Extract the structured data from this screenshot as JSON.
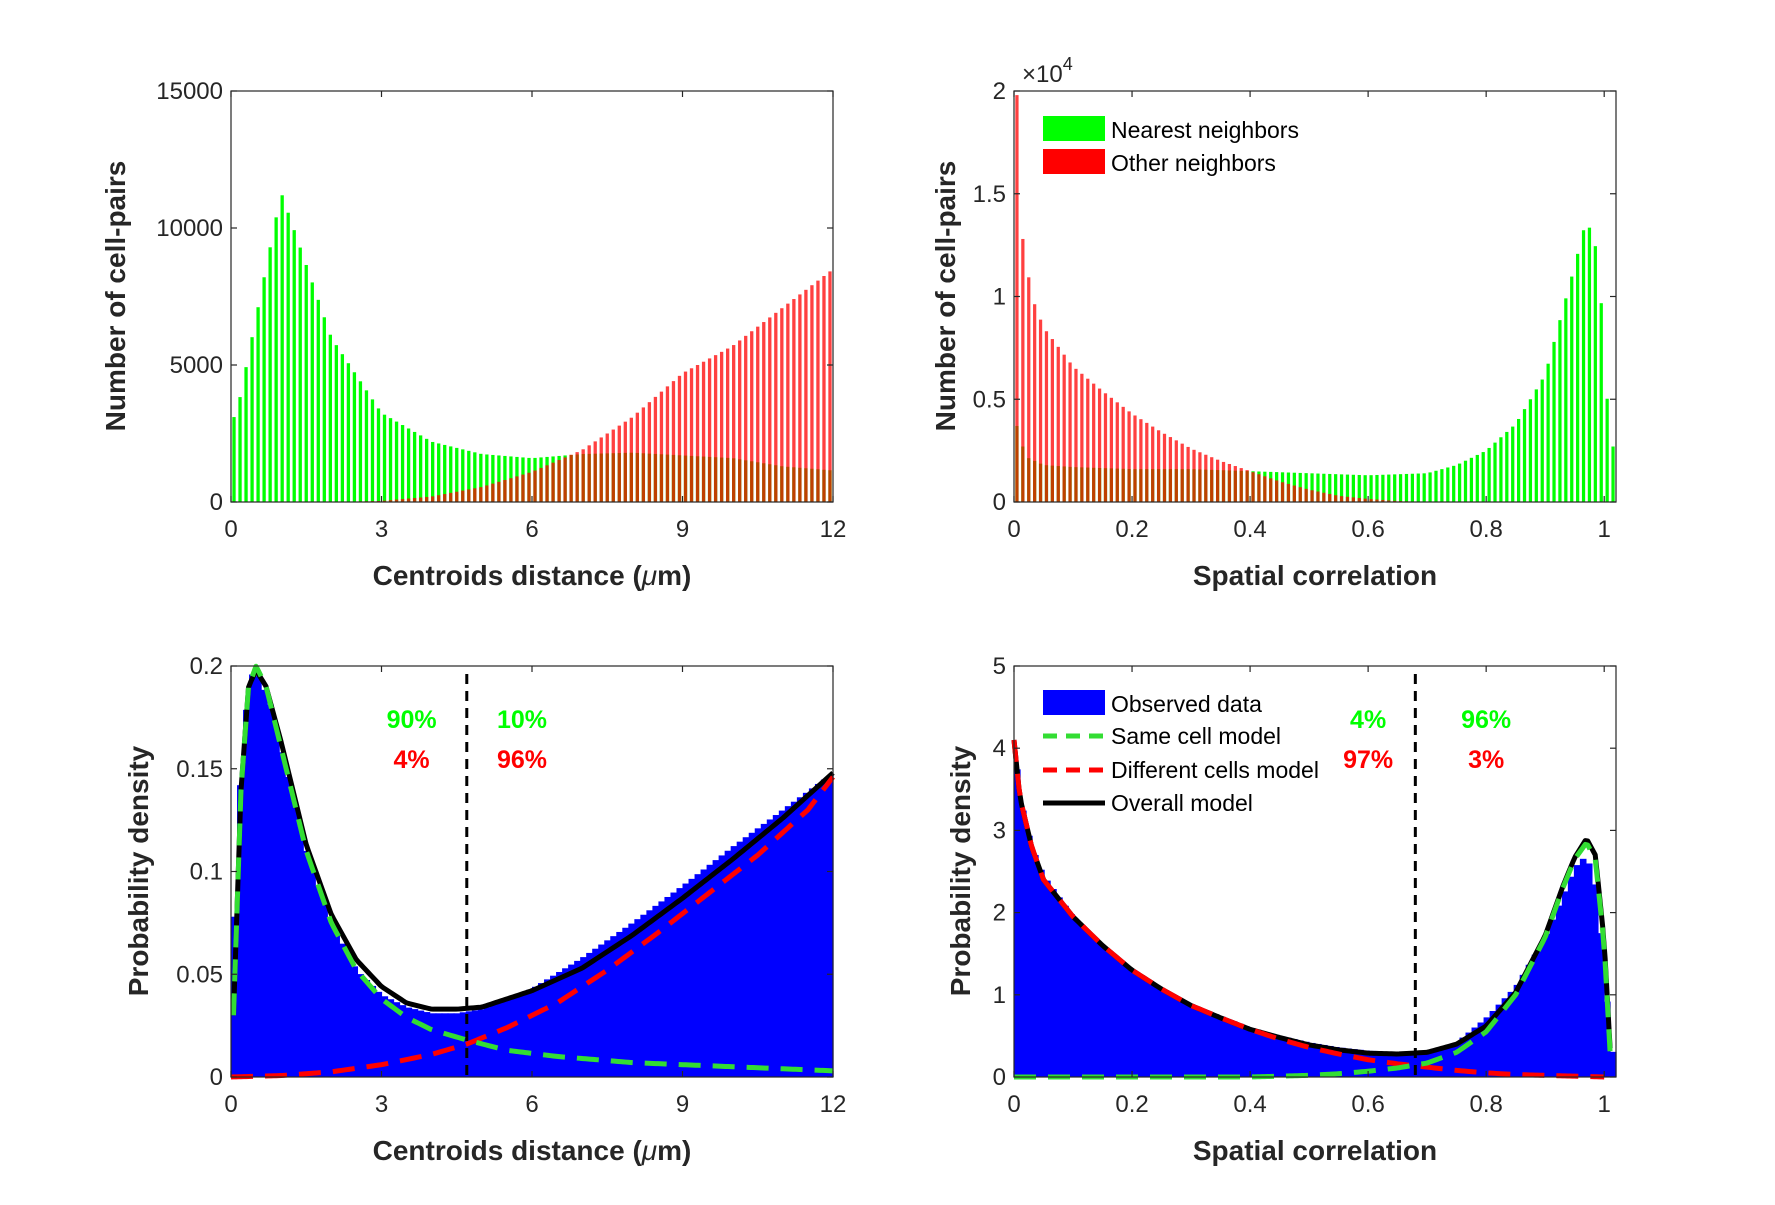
{
  "colors": {
    "green": "#00FF00",
    "red": "#FF0000",
    "blue": "#0000FF",
    "black": "#000000",
    "green_dash": "#33DD33"
  },
  "chart_data": [
    {
      "id": "A",
      "type": "bar",
      "title": "",
      "xlabel_pre": "Centroids distance (",
      "xlabel_mu": "μ",
      "xlabel_post": "m)",
      "ylabel": "Number of cell-pairs",
      "xlim": [
        0,
        12
      ],
      "ylim": [
        0,
        15000
      ],
      "xticks": [
        "0",
        "3",
        "6",
        "9",
        "12"
      ],
      "xtick_values": [
        0,
        3,
        6,
        9,
        12
      ],
      "yticks": [
        "0",
        "5000",
        "10000",
        "15000"
      ],
      "ytick_values": [
        0,
        5000,
        10000,
        15000
      ],
      "bin_width": 0.12,
      "series": [
        {
          "color": "green",
          "x": [
            0.1,
            1.0,
            2.0,
            3.0,
            4.0,
            5.0,
            6.0,
            7.0,
            8.0,
            9.0,
            10.0,
            11.0,
            12.0
          ],
          "y": [
            3100,
            11300,
            6000,
            3250,
            2200,
            1750,
            1600,
            1750,
            1800,
            1700,
            1600,
            1300,
            1150
          ]
        },
        {
          "color": "red",
          "x": [
            0.1,
            1.0,
            2.0,
            3.0,
            4.0,
            5.0,
            6.0,
            7.0,
            8.0,
            9.0,
            10.0,
            11.0,
            12.0
          ],
          "y": [
            0,
            0,
            0,
            40,
            200,
            550,
            1100,
            1900,
            3100,
            4700,
            5700,
            7100,
            8500
          ]
        }
      ]
    },
    {
      "id": "B",
      "type": "bar",
      "title": "",
      "xlabel": "Spatial correlation",
      "ylabel": "Number of cell-pairs",
      "exponent_label": "×10",
      "exponent_power": "4",
      "xlim": [
        0,
        1.02
      ],
      "ylim": [
        0,
        2
      ],
      "xticks": [
        "0",
        "0.2",
        "0.4",
        "0.6",
        "0.8",
        "1"
      ],
      "xtick_values": [
        0,
        0.2,
        0.4,
        0.6,
        0.8,
        1
      ],
      "yticks": [
        "0",
        "0.5",
        "1",
        "1.5",
        "2"
      ],
      "ytick_values": [
        0,
        0.5,
        1,
        1.5,
        2
      ],
      "bin_width": 0.01,
      "legend": {
        "position": "top-left",
        "entries": [
          {
            "label": "Nearest neighbors",
            "color": "green"
          },
          {
            "label": "Other neighbors",
            "color": "red"
          }
        ]
      },
      "series": [
        {
          "name": "Nearest neighbors",
          "color": "green",
          "x": [
            0.005,
            0.02,
            0.05,
            0.1,
            0.2,
            0.3,
            0.4,
            0.5,
            0.6,
            0.7,
            0.75,
            0.8,
            0.85,
            0.9,
            0.95,
            0.97,
            0.99,
            1.01
          ],
          "y": [
            0.37,
            0.22,
            0.18,
            0.17,
            0.16,
            0.16,
            0.15,
            0.14,
            0.13,
            0.14,
            0.18,
            0.25,
            0.38,
            0.62,
            1.15,
            1.38,
            1.2,
            0.27
          ]
        },
        {
          "name": "Other neighbors",
          "color": "red",
          "x": [
            0.005,
            0.015,
            0.03,
            0.05,
            0.1,
            0.15,
            0.2,
            0.25,
            0.3,
            0.35,
            0.4,
            0.45,
            0.5,
            0.55,
            0.6,
            0.65,
            0.7
          ],
          "y": [
            1.98,
            1.28,
            1.0,
            0.85,
            0.66,
            0.54,
            0.43,
            0.34,
            0.26,
            0.2,
            0.15,
            0.1,
            0.06,
            0.03,
            0.015,
            0.005,
            0.0
          ]
        }
      ]
    },
    {
      "id": "C",
      "type": "area",
      "title": "",
      "xlabel_pre": "Centroids distance (",
      "xlabel_mu": "μ",
      "xlabel_post": "m)",
      "ylabel": "Probability density",
      "xlim": [
        0,
        12
      ],
      "ylim": [
        0,
        0.2
      ],
      "xticks": [
        "0",
        "3",
        "6",
        "9",
        "12"
      ],
      "xtick_values": [
        0,
        3,
        6,
        9,
        12
      ],
      "yticks": [
        "0",
        "0.05",
        "0.1",
        "0.15",
        "0.2"
      ],
      "ytick_values": [
        0,
        0.05,
        0.1,
        0.15,
        0.2
      ],
      "threshold": 4.7,
      "annotations": [
        {
          "text": "90%",
          "x": 3.6,
          "row": 0,
          "color": "green"
        },
        {
          "text": "10%",
          "x": 5.8,
          "row": 0,
          "color": "green"
        },
        {
          "text": "4%",
          "x": 3.6,
          "row": 1,
          "color": "red"
        },
        {
          "text": "96%",
          "x": 5.8,
          "row": 1,
          "color": "red"
        }
      ],
      "series": [
        {
          "role": "observed",
          "color": "blue",
          "x": [
            0,
            0.1,
            0.25,
            0.4,
            0.55,
            0.8,
            1.0,
            1.5,
            2.0,
            2.5,
            3.0,
            3.5,
            4.0,
            4.5,
            5.0,
            6.0,
            7.0,
            8.0,
            9.0,
            10.0,
            11.0,
            12.0
          ],
          "y": [
            0.03,
            0.11,
            0.17,
            0.196,
            0.195,
            0.18,
            0.16,
            0.11,
            0.075,
            0.052,
            0.04,
            0.034,
            0.031,
            0.031,
            0.033,
            0.043,
            0.058,
            0.075,
            0.093,
            0.112,
            0.13,
            0.148
          ]
        },
        {
          "role": "same-cell-model",
          "color": "green",
          "style": "dashed",
          "x": [
            0.05,
            0.2,
            0.35,
            0.5,
            0.7,
            1.0,
            1.5,
            2.0,
            2.5,
            3.0,
            3.5,
            4.0,
            4.7,
            5.5,
            6.5,
            8.0,
            10.0,
            12.0
          ],
          "y": [
            0.03,
            0.14,
            0.19,
            0.2,
            0.19,
            0.16,
            0.11,
            0.075,
            0.052,
            0.038,
            0.029,
            0.023,
            0.018,
            0.013,
            0.01,
            0.007,
            0.005,
            0.003
          ]
        },
        {
          "role": "different-cells-model",
          "color": "red",
          "style": "dashed",
          "x": [
            0,
            1.0,
            2.0,
            3.0,
            4.0,
            4.7,
            5.5,
            6.5,
            7.5,
            8.5,
            9.5,
            10.5,
            11.5,
            12.0
          ],
          "y": [
            0.0,
            0.0007,
            0.0025,
            0.006,
            0.011,
            0.016,
            0.024,
            0.036,
            0.052,
            0.07,
            0.089,
            0.108,
            0.13,
            0.146
          ]
        },
        {
          "role": "overall-model",
          "color": "black",
          "style": "solid",
          "x": [
            0.05,
            0.2,
            0.35,
            0.5,
            0.7,
            1.0,
            1.5,
            2.0,
            2.5,
            3.0,
            3.5,
            4.0,
            4.5,
            5.0,
            6.0,
            7.0,
            8.0,
            9.0,
            10.0,
            11.0,
            12.0
          ],
          "y": [
            0.03,
            0.14,
            0.19,
            0.198,
            0.19,
            0.163,
            0.113,
            0.079,
            0.057,
            0.044,
            0.036,
            0.033,
            0.033,
            0.034,
            0.042,
            0.053,
            0.069,
            0.087,
            0.106,
            0.126,
            0.148
          ]
        }
      ]
    },
    {
      "id": "D",
      "type": "area",
      "title": "",
      "xlabel": "Spatial correlation",
      "ylabel": "Probability density",
      "xlim": [
        0,
        1.02
      ],
      "ylim": [
        0,
        5
      ],
      "xticks": [
        "0",
        "0.2",
        "0.4",
        "0.6",
        "0.8",
        "1"
      ],
      "xtick_values": [
        0,
        0.2,
        0.4,
        0.6,
        0.8,
        1
      ],
      "yticks": [
        "0",
        "1",
        "2",
        "3",
        "4",
        "5"
      ],
      "ytick_values": [
        0,
        1,
        2,
        3,
        4,
        5
      ],
      "threshold": 0.68,
      "legend": {
        "position": "top-left",
        "entries": [
          {
            "label": "Observed data",
            "color": "blue",
            "kind": "patch"
          },
          {
            "label": "Same cell model",
            "color": "green",
            "kind": "dash"
          },
          {
            "label": "Different cells model",
            "color": "red",
            "kind": "dash"
          },
          {
            "label": "Overall model",
            "color": "black",
            "kind": "line"
          }
        ]
      },
      "annotations": [
        {
          "text": "4%",
          "x": 0.6,
          "row": 0,
          "color": "green"
        },
        {
          "text": "96%",
          "x": 0.8,
          "row": 0,
          "color": "green"
        },
        {
          "text": "97%",
          "x": 0.6,
          "row": 1,
          "color": "red"
        },
        {
          "text": "3%",
          "x": 0.8,
          "row": 1,
          "color": "red"
        }
      ],
      "series": [
        {
          "role": "observed",
          "color": "blue",
          "x": [
            0,
            0.01,
            0.03,
            0.05,
            0.1,
            0.15,
            0.2,
            0.25,
            0.3,
            0.35,
            0.4,
            0.45,
            0.5,
            0.55,
            0.6,
            0.65,
            0.7,
            0.75,
            0.8,
            0.85,
            0.9,
            0.93,
            0.95,
            0.97,
            0.99,
            1.0,
            1.01,
            1.02
          ],
          "y": [
            4.1,
            3.4,
            2.8,
            2.45,
            1.95,
            1.6,
            1.3,
            1.08,
            0.88,
            0.74,
            0.6,
            0.5,
            0.42,
            0.36,
            0.32,
            0.3,
            0.31,
            0.42,
            0.72,
            1.1,
            1.7,
            2.2,
            2.55,
            2.7,
            2.2,
            1.2,
            0.6,
            0.0
          ]
        },
        {
          "role": "same-cell-model",
          "color": "green",
          "style": "dashed",
          "x": [
            0,
            0.4,
            0.5,
            0.55,
            0.6,
            0.65,
            0.7,
            0.75,
            0.8,
            0.85,
            0.9,
            0.93,
            0.95,
            0.97,
            0.985,
            1.0,
            1.01
          ],
          "y": [
            0.0,
            0.0,
            0.02,
            0.04,
            0.07,
            0.11,
            0.17,
            0.3,
            0.55,
            1.0,
            1.7,
            2.3,
            2.65,
            2.85,
            2.65,
            1.6,
            0.3
          ]
        },
        {
          "role": "different-cells-model",
          "color": "red",
          "style": "dashed",
          "x": [
            0.0,
            0.01,
            0.03,
            0.05,
            0.1,
            0.15,
            0.2,
            0.25,
            0.3,
            0.35,
            0.4,
            0.45,
            0.5,
            0.55,
            0.6,
            0.65,
            0.7,
            0.75,
            0.8,
            0.85,
            0.9,
            1.0
          ],
          "y": [
            4.1,
            3.4,
            2.8,
            2.4,
            1.95,
            1.6,
            1.3,
            1.07,
            0.87,
            0.72,
            0.58,
            0.46,
            0.36,
            0.28,
            0.21,
            0.16,
            0.12,
            0.08,
            0.05,
            0.03,
            0.02,
            0.0
          ]
        },
        {
          "role": "overall-model",
          "color": "black",
          "style": "solid",
          "x": [
            0.0,
            0.01,
            0.03,
            0.05,
            0.1,
            0.15,
            0.2,
            0.25,
            0.3,
            0.35,
            0.4,
            0.45,
            0.5,
            0.55,
            0.6,
            0.65,
            0.7,
            0.75,
            0.8,
            0.85,
            0.9,
            0.93,
            0.95,
            0.97,
            0.985,
            1.0,
            1.01
          ],
          "y": [
            4.1,
            3.4,
            2.8,
            2.4,
            1.95,
            1.6,
            1.3,
            1.07,
            0.87,
            0.72,
            0.58,
            0.48,
            0.39,
            0.33,
            0.29,
            0.28,
            0.3,
            0.4,
            0.62,
            1.03,
            1.72,
            2.32,
            2.67,
            2.9,
            2.7,
            1.65,
            0.35
          ]
        }
      ]
    }
  ]
}
